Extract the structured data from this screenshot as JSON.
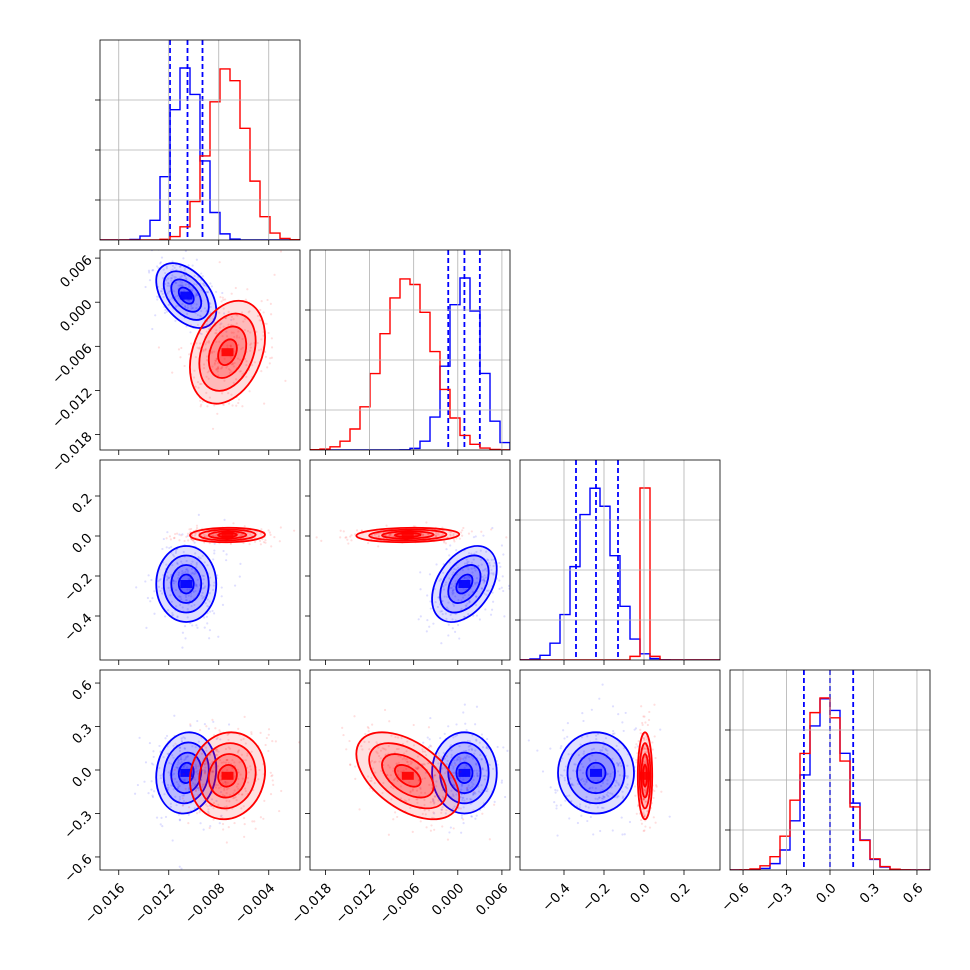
{
  "chart_data": {
    "type": "corner",
    "title": "",
    "grid": true,
    "colors": {
      "blue": "#0000ff",
      "red": "#ff0000"
    },
    "params": [
      {
        "ticks": [
          "−0.016",
          "−0.012",
          "−0.008",
          "−0.004"
        ],
        "tick_values": [
          -0.016,
          -0.012,
          -0.008,
          -0.004
        ],
        "range": [
          -0.0175,
          -0.0015
        ]
      },
      {
        "ticks": [
          "−0.018",
          "−0.012",
          "−0.006",
          "0.000",
          "0.006"
        ],
        "tick_values": [
          -0.018,
          -0.012,
          -0.006,
          0.0,
          0.006
        ],
        "range": [
          -0.0201,
          0.0071
        ]
      },
      {
        "ticks": [
          "−0.4",
          "−0.2",
          "0.0",
          "0.2"
        ],
        "tick_values": [
          -0.4,
          -0.2,
          0.0,
          0.2
        ],
        "range": [
          -0.62,
          0.38
        ]
      },
      {
        "ticks": [
          "−0.6",
          "−0.3",
          "0.0",
          "0.3",
          "0.6"
        ],
        "tick_values": [
          -0.6,
          -0.3,
          0.0,
          0.3,
          0.6
        ],
        "range": [
          -0.69,
          0.69
        ]
      }
    ],
    "series": [
      {
        "color": "blue",
        "means": [
          -0.0106,
          0.0009,
          -0.24,
          -0.02
        ],
        "sds": [
          0.0012,
          0.0022,
          0.095,
          0.14
        ],
        "quantiles": [
          [
            -0.0119,
            -0.0105,
            -0.0093
          ],
          [
            -0.0013,
            0.0009,
            0.003
          ],
          [
            -0.34,
            -0.24,
            -0.13
          ],
          [
            -0.18,
            0.0,
            0.16
          ]
        ]
      },
      {
        "color": "red",
        "means": [
          -0.0073,
          -0.0068,
          0.005,
          -0.04
        ],
        "sds": [
          0.0015,
          0.0035,
          0.018,
          0.15
        ]
      }
    ],
    "pair_correlations": {
      "blue": {
        "1-0": -0.45,
        "2-0": 0.0,
        "2-1": 0.4,
        "3-0": 0.1,
        "3-1": 0.0,
        "3-2": 0.0
      },
      "red": {
        "1-0": 0.3,
        "2-0": 0.05,
        "2-1": 0.1,
        "3-0": 0.1,
        "3-1": -0.5,
        "3-2": 0.0
      }
    }
  }
}
